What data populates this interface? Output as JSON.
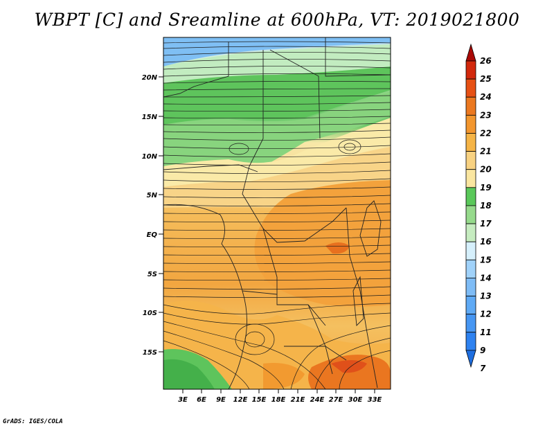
{
  "title": "WBPT [C] and Sreamline at 600hPa, VT: 2019021800",
  "credit": "GrADS: IGES/COLA",
  "map": {
    "lat_labels": [
      "20N",
      "15N",
      "10N",
      "5N",
      "EQ",
      "5S",
      "10S",
      "15S"
    ],
    "lon_labels": [
      "3E",
      "6E",
      "9E",
      "12E",
      "15E",
      "18E",
      "21E",
      "24E",
      "27E",
      "30E",
      "33E"
    ]
  },
  "colorbar": {
    "labels": [
      "7",
      "9",
      "11",
      "12",
      "13",
      "14",
      "15",
      "16",
      "17",
      "18",
      "19",
      "20",
      "21",
      "22",
      "23",
      "24",
      "25",
      "26"
    ],
    "colors": [
      "#1e6ee0",
      "#2e82f0",
      "#4696f2",
      "#5faaf5",
      "#7ebcf6",
      "#a0d2fa",
      "#d6f0fc",
      "#c6ecc0",
      "#96da8c",
      "#5ac85a",
      "#fae6a0",
      "#f8d282",
      "#f5b446",
      "#f2962e",
      "#eb7820",
      "#e65014",
      "#d2280c",
      "#aa0a06"
    ]
  }
}
